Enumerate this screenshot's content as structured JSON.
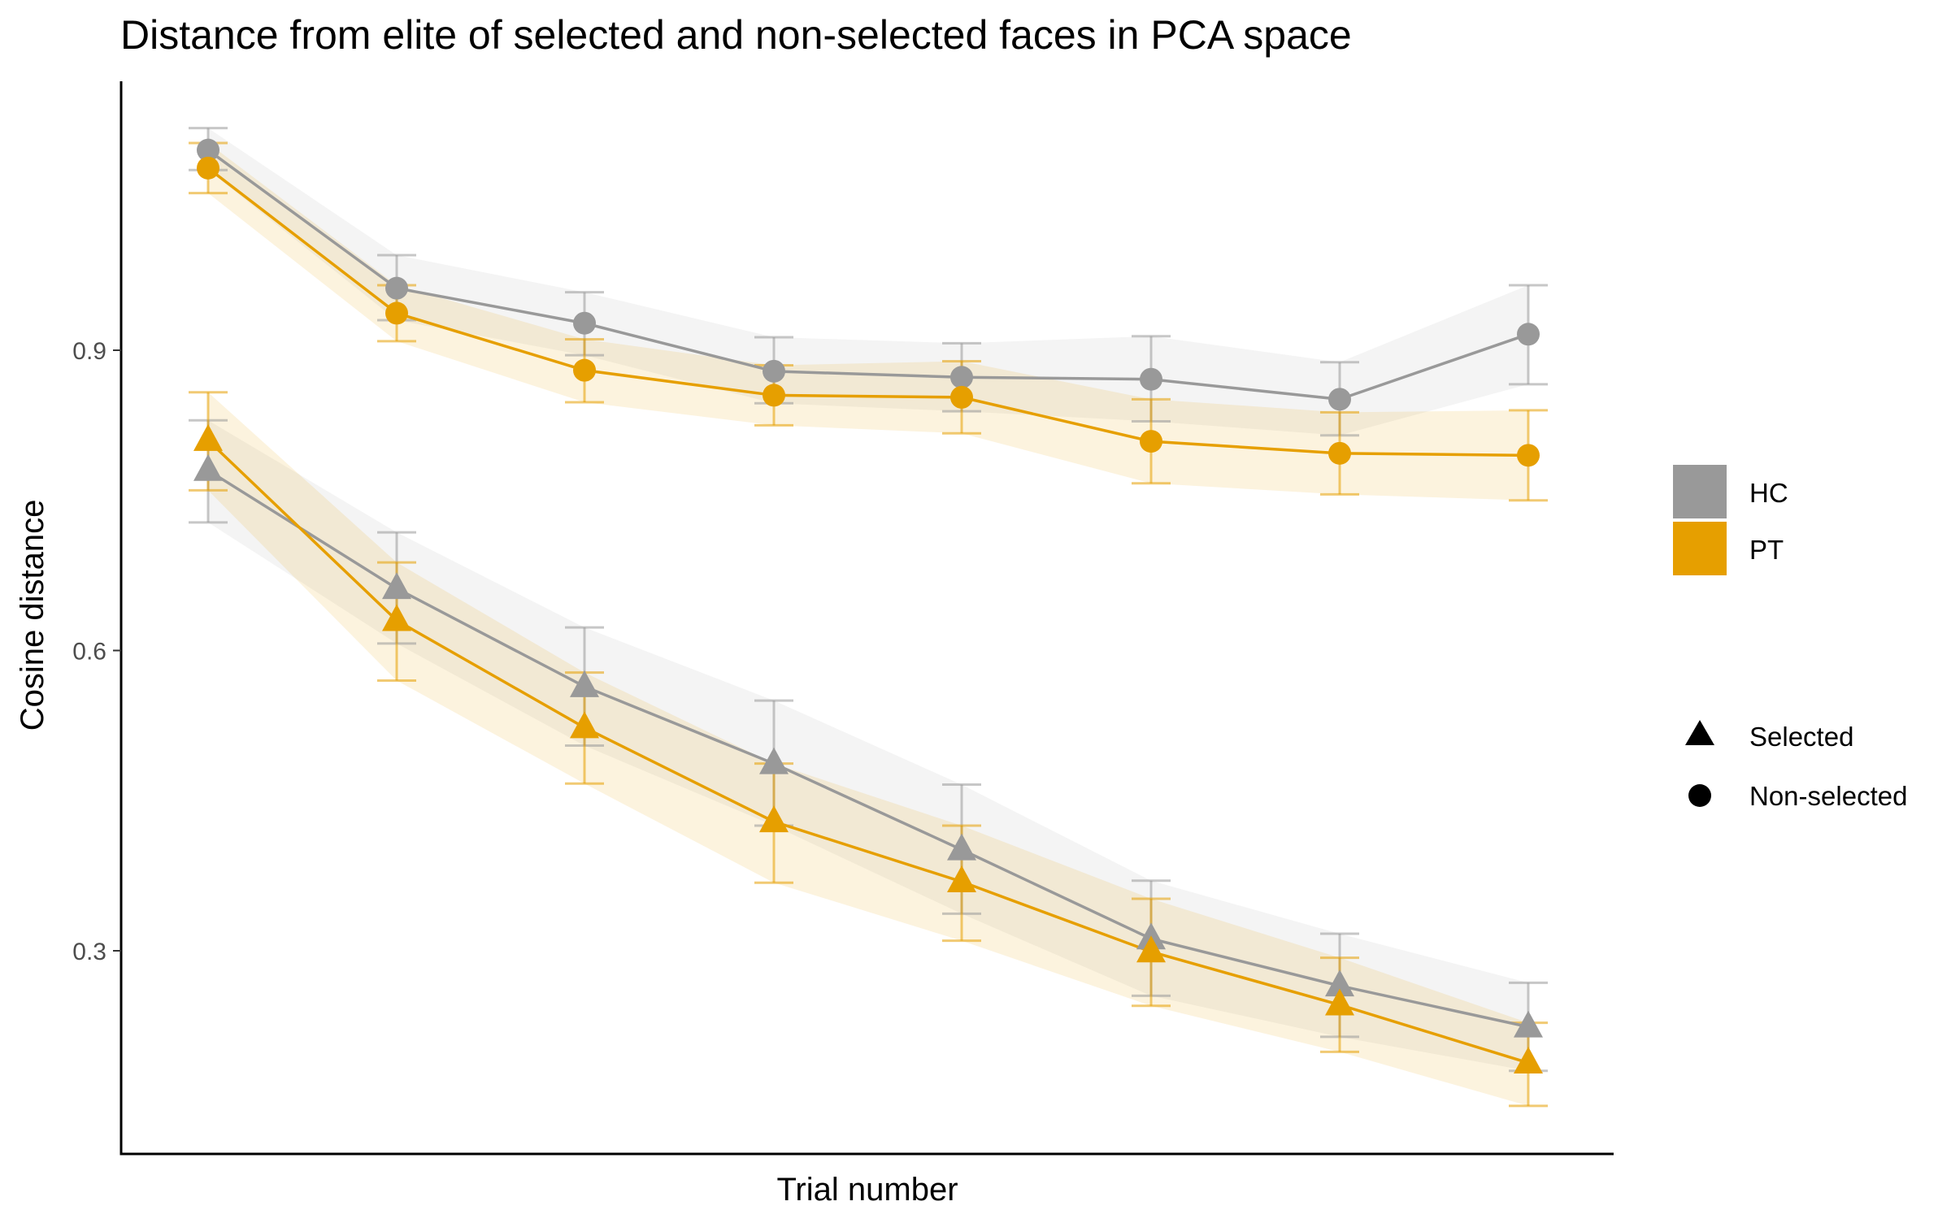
{
  "chart_data": {
    "type": "line",
    "title": "Distance from elite of selected and non-selected faces in PCA space",
    "xlabel": "Trial number",
    "ylabel": "Cosine distance",
    "x": [
      1,
      2,
      3,
      4,
      5,
      6,
      7,
      8
    ],
    "ylim": [
      0.155,
      1.18
    ],
    "yticks": [
      0.3,
      0.6,
      0.9
    ],
    "yticklabels": [
      "0.3",
      "0.6",
      "0.9"
    ],
    "grid": false,
    "legend": {
      "placement": "right",
      "colors": [
        {
          "label": "HC",
          "color": "#999999"
        },
        {
          "label": "PT",
          "color": "#E69F00"
        }
      ],
      "shapes": [
        {
          "label": "Selected",
          "shape": "triangle"
        },
        {
          "label": "Non-selected",
          "shape": "circle"
        }
      ]
    },
    "series": [
      {
        "group": "HC",
        "type": "Non-selected",
        "color": "#999999",
        "marker": "circle",
        "values": [
          1.1,
          0.962,
          0.927,
          0.879,
          0.873,
          0.871,
          0.851,
          0.916
        ],
        "err_low": [
          1.08,
          0.93,
          0.895,
          0.847,
          0.839,
          0.829,
          0.815,
          0.866
        ],
        "err_high": [
          1.122,
          0.995,
          0.958,
          0.913,
          0.907,
          0.914,
          0.888,
          0.965
        ]
      },
      {
        "group": "PT",
        "type": "Non-selected",
        "color": "#E69F00",
        "marker": "circle",
        "values": [
          1.082,
          0.937,
          0.88,
          0.855,
          0.853,
          0.809,
          0.797,
          0.795
        ],
        "err_low": [
          1.057,
          0.909,
          0.848,
          0.825,
          0.817,
          0.767,
          0.756,
          0.75
        ],
        "err_high": [
          1.107,
          0.965,
          0.911,
          0.885,
          0.889,
          0.851,
          0.838,
          0.84
        ]
      },
      {
        "group": "HC",
        "type": "Selected",
        "color": "#999999",
        "marker": "triangle",
        "values": [
          0.78,
          0.662,
          0.564,
          0.487,
          0.401,
          0.312,
          0.265,
          0.224
        ],
        "err_low": [
          0.728,
          0.607,
          0.505,
          0.425,
          0.337,
          0.255,
          0.214,
          0.18
        ],
        "err_high": [
          0.83,
          0.718,
          0.623,
          0.55,
          0.466,
          0.37,
          0.317,
          0.268
        ]
      },
      {
        "group": "PT",
        "type": "Selected",
        "color": "#E69F00",
        "marker": "triangle",
        "values": [
          0.81,
          0.63,
          0.523,
          0.429,
          0.369,
          0.299,
          0.246,
          0.188
        ],
        "err_low": [
          0.76,
          0.57,
          0.467,
          0.368,
          0.31,
          0.245,
          0.199,
          0.145
        ],
        "err_high": [
          0.858,
          0.688,
          0.578,
          0.487,
          0.425,
          0.352,
          0.293,
          0.228
        ]
      }
    ]
  }
}
